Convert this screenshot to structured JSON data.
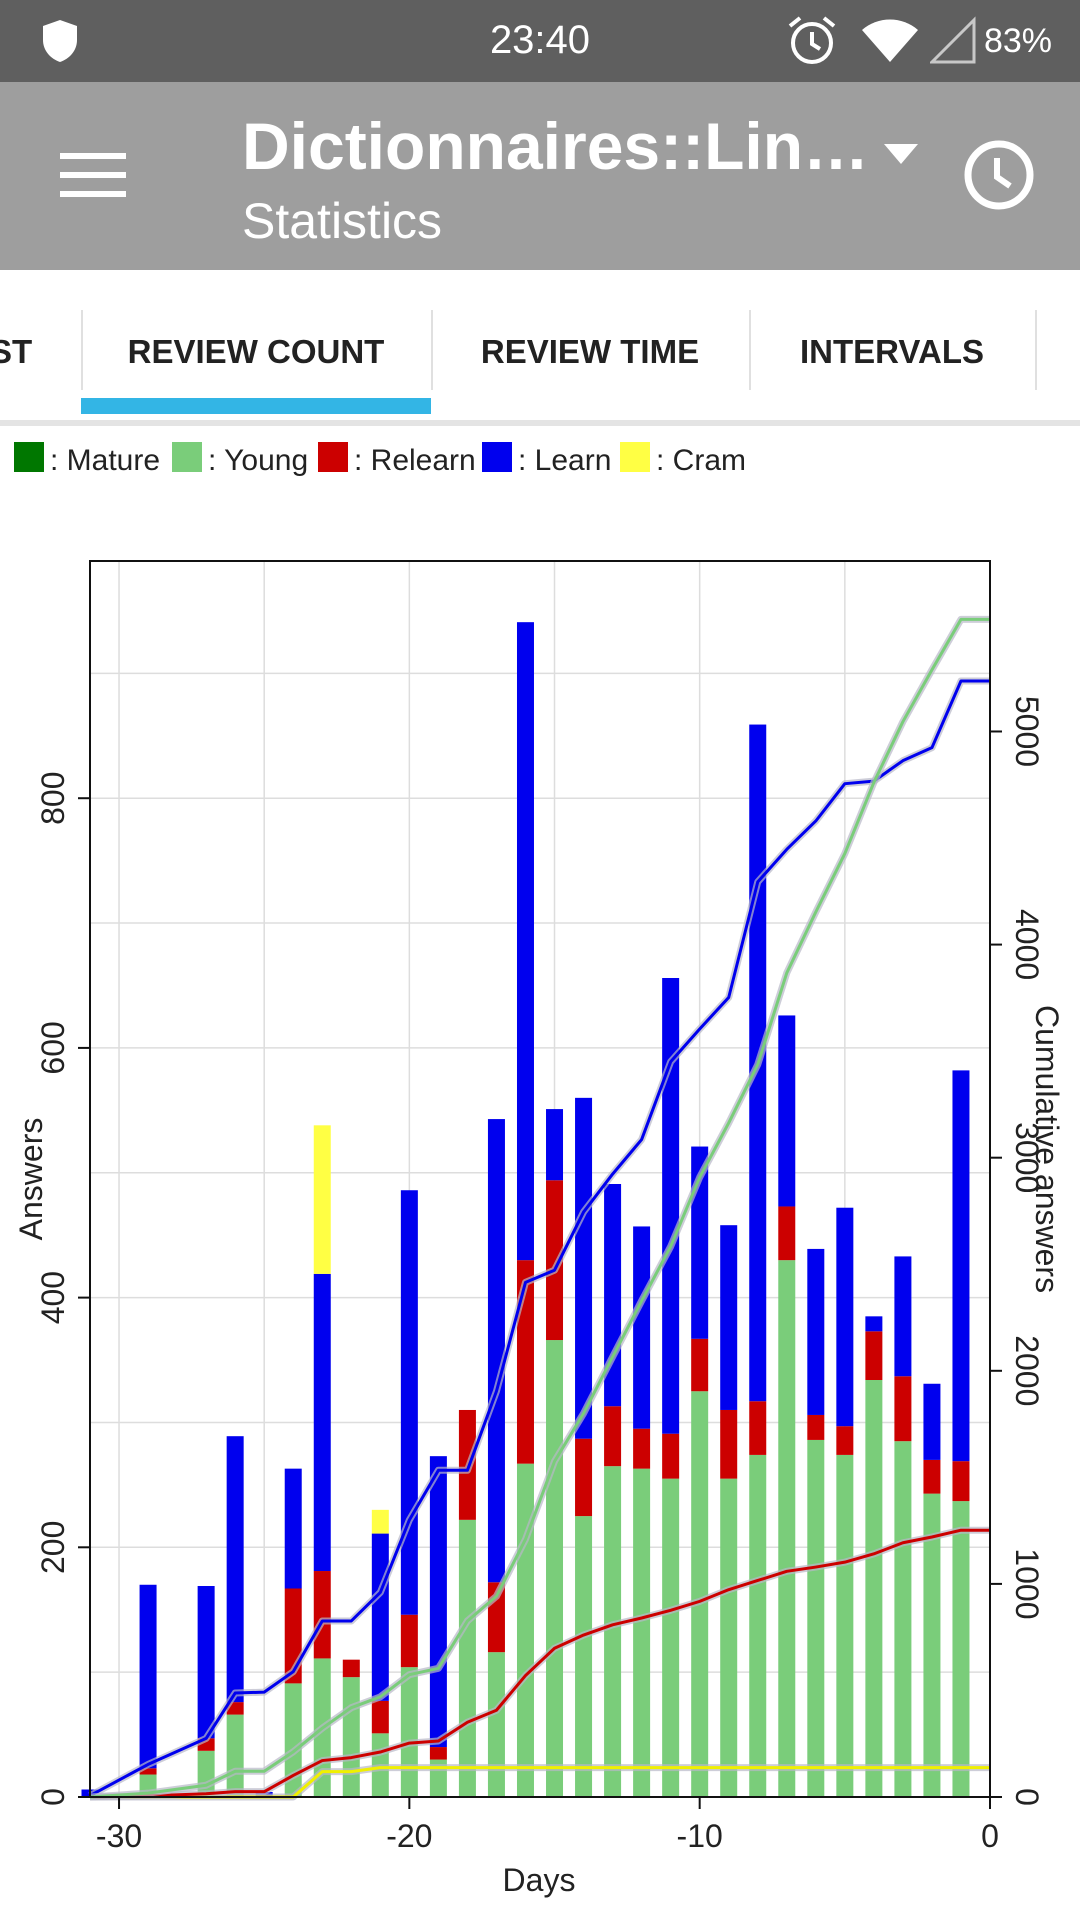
{
  "status_bar": {
    "time": "23:40",
    "battery": "83%",
    "icons": [
      "shield-icon",
      "alarm-icon",
      "wifi-icon",
      "signal-icon"
    ]
  },
  "app_bar": {
    "title": "Dictionnaires::Lin…",
    "subtitle": "Statistics",
    "icons": [
      "menu-icon",
      "dropdown-icon",
      "clock-icon"
    ]
  },
  "tabs": [
    {
      "label": "ST"
    },
    {
      "label": "REVIEW COUNT",
      "selected": true
    },
    {
      "label": "REVIEW TIME"
    },
    {
      "label": "INTERVALS"
    }
  ],
  "legend": [
    {
      "label": ": Mature",
      "color": "#007700"
    },
    {
      "label": ": Young",
      "color": "#7acd7a"
    },
    {
      "label": ": Relearn",
      "color": "#cc0000"
    },
    {
      "label": ": Learn",
      "color": "#0000ee"
    },
    {
      "label": ": Cram",
      "color": "#ffff44"
    }
  ],
  "chart_data": {
    "type": "bar",
    "stacked": true,
    "xlabel": "Days",
    "ylabel": "Answers",
    "y2label": "Cumulative answers",
    "xlim": [
      -31,
      0
    ],
    "ylim": [
      0,
      990
    ],
    "y2lim": [
      0,
      5800
    ],
    "xticks": [
      "-30",
      "-20",
      "-10",
      "0"
    ],
    "yticks": [
      "0",
      "200",
      "400",
      "600",
      "800"
    ],
    "y2ticks": [
      "0",
      "1000",
      "2000",
      "3000",
      "4000",
      "5000"
    ],
    "colors": {
      "mature": "#007700",
      "young": "#7acd7a",
      "relearn": "#cc0000",
      "learn": "#0000ee",
      "cram": "#ffff44"
    },
    "x": [
      -31,
      -29,
      -27,
      -26,
      -25,
      -24,
      -23,
      -22,
      -21,
      -20,
      -19,
      -18,
      -17,
      -16,
      -15,
      -14,
      -13,
      -12,
      -11,
      -10,
      -9,
      -8,
      -7,
      -6,
      -5,
      -4,
      -3,
      -2,
      -1
    ],
    "series": [
      {
        "name": "Young",
        "values": [
          0,
          18,
          37,
          66,
          0,
          91,
          111,
          96,
          51,
          104,
          30,
          222,
          116,
          267,
          366,
          225,
          265,
          263,
          255,
          325,
          255,
          274,
          430,
          286,
          274,
          334,
          285,
          243,
          237
        ]
      },
      {
        "name": "Relearn",
        "values": [
          0,
          5,
          10,
          10,
          0,
          76,
          70,
          14,
          26,
          42,
          10,
          88,
          56,
          163,
          128,
          62,
          48,
          32,
          36,
          42,
          55,
          43,
          43,
          20,
          23,
          39,
          52,
          27,
          32
        ]
      },
      {
        "name": "Learn",
        "values": [
          6,
          147,
          122,
          213,
          4,
          96,
          238,
          0,
          134,
          340,
          233,
          0,
          371,
          511,
          57,
          273,
          178,
          162,
          365,
          154,
          148,
          542,
          153,
          133,
          175,
          12,
          96,
          61,
          313
        ]
      },
      {
        "name": "Cram",
        "values": [
          0,
          0,
          0,
          0,
          0,
          0,
          119,
          0,
          19,
          0,
          0,
          0,
          0,
          0,
          0,
          0,
          0,
          0,
          0,
          0,
          0,
          0,
          0,
          0,
          0,
          0,
          0,
          0,
          0
        ]
      }
    ],
    "cumulative": {
      "x": [
        -31,
        -29,
        -27,
        -26,
        -25,
        -24,
        -23,
        -22,
        -21,
        -20,
        -19,
        -18,
        -17,
        -16,
        -15,
        -14,
        -13,
        -12,
        -11,
        -10,
        -9,
        -8,
        -7,
        -6,
        -5,
        -4,
        -3,
        -2,
        -1,
        0
      ],
      "young": [
        0,
        18,
        55,
        121,
        121,
        212,
        323,
        419,
        470,
        574,
        604,
        826,
        942,
        1209,
        1575,
        1800,
        2065,
        2328,
        2583,
        2908,
        3163,
        3437,
        3867,
        4153,
        4427,
        4761,
        5046,
        5289,
        5526,
        5526
      ],
      "learn": [
        6,
        153,
        275,
        488,
        492,
        588,
        826,
        826,
        960,
        1300,
        1533,
        1533,
        1904,
        2415,
        2472,
        2745,
        2923,
        3085,
        3450,
        3604,
        3752,
        4294,
        4447,
        4580,
        4755,
        4767,
        4863,
        4924,
        5237,
        5237
      ],
      "relearn": [
        0,
        5,
        15,
        25,
        25,
        101,
        171,
        185,
        211,
        253,
        263,
        351,
        407,
        570,
        698,
        760,
        808,
        840,
        876,
        918,
        973,
        1016,
        1059,
        1079,
        1102,
        1141,
        1193,
        1220,
        1252,
        1252
      ],
      "cram": [
        0,
        0,
        0,
        0,
        0,
        0,
        119,
        119,
        138,
        138,
        138,
        138,
        138,
        138,
        138,
        138,
        138,
        138,
        138,
        138,
        138,
        138,
        138,
        138,
        138,
        138,
        138,
        138,
        138,
        138
      ]
    }
  }
}
